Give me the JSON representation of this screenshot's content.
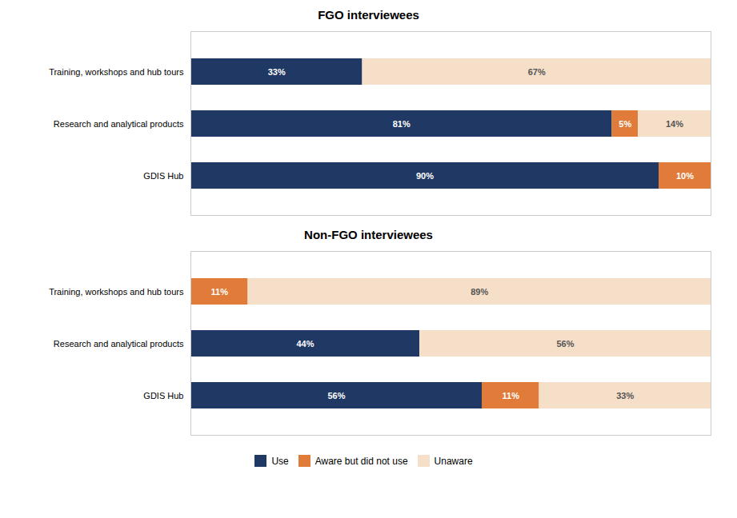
{
  "chart_data": [
    {
      "type": "bar",
      "orientation": "horizontal",
      "stacked": true,
      "title": "FGO interviewees",
      "categories": [
        "GDIS Hub",
        "Research and analytical products",
        "Training, workshops and hub tours"
      ],
      "series": [
        {
          "name": "Use",
          "color": "#1f3864",
          "values": [
            90,
            81,
            33
          ],
          "value_labels": [
            "90%",
            "81%",
            "33%"
          ]
        },
        {
          "name": "Aware but did not use",
          "color": "#e07b39",
          "values": [
            10,
            5,
            0
          ],
          "value_labels": [
            "10%",
            "5%",
            null
          ]
        },
        {
          "name": "Unaware",
          "color": "#f5dfc8",
          "values": [
            0,
            14,
            67
          ],
          "value_labels": [
            null,
            "14%",
            "67%"
          ]
        }
      ],
      "xlim": [
        0,
        100
      ],
      "data_labels": true,
      "tick_labels": "y",
      "grid": false
    },
    {
      "type": "bar",
      "orientation": "horizontal",
      "stacked": true,
      "title": "Non-FGO interviewees",
      "categories": [
        "GDIS Hub",
        "Research and analytical products",
        "Training, workshops and hub tours"
      ],
      "series": [
        {
          "name": "Use",
          "color": "#1f3864",
          "values": [
            56,
            44,
            0
          ],
          "value_labels": [
            "56%",
            "44%",
            null
          ]
        },
        {
          "name": "Aware but did not use",
          "color": "#e07b39",
          "values": [
            11,
            0,
            11
          ],
          "value_labels": [
            "11%",
            null,
            "11%"
          ]
        },
        {
          "name": "Unaware",
          "color": "#f5dfc8",
          "values": [
            33,
            56,
            89
          ],
          "value_labels": [
            "33%",
            "56%",
            "89%"
          ]
        }
      ],
      "xlim": [
        0,
        100
      ],
      "data_labels": true,
      "tick_labels": "y",
      "grid": false,
      "legend": "bottom"
    }
  ]
}
